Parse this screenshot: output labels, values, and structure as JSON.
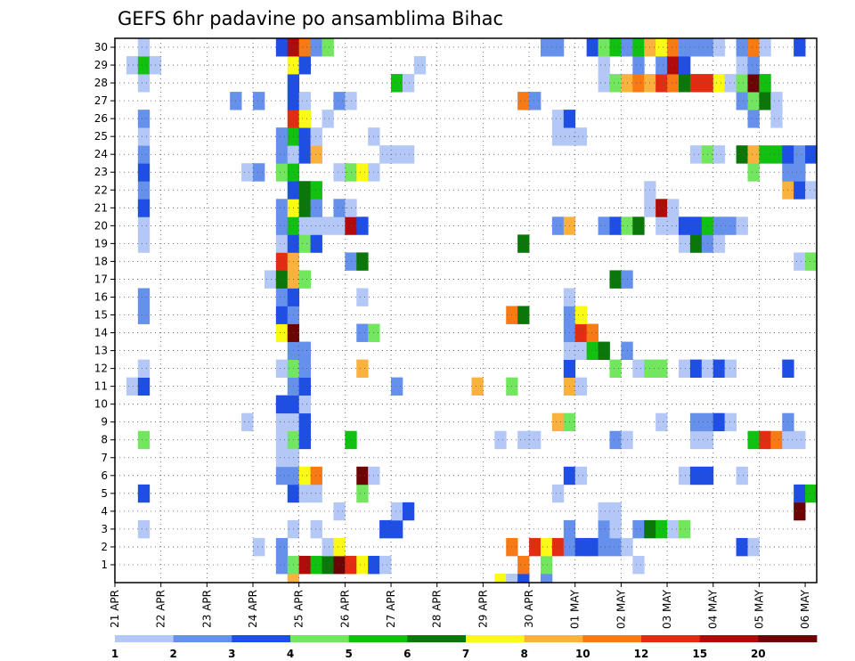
{
  "chart_data": {
    "type": "heatmap",
    "title": "GEFS 6hr padavine po ansamblima Bihac",
    "xlabel": "",
    "ylabel": "",
    "x_ticks": [
      "21 APR",
      "22 APR",
      "23 APR",
      "24 APR",
      "25 APR",
      "26 APR",
      "27 APR",
      "28 APR",
      "29 APR",
      "30 APR",
      "01 MAY",
      "02 MAY",
      "03 MAY",
      "04 MAY",
      "05 MAY",
      "06 MAY"
    ],
    "y_ticks": [
      1,
      2,
      3,
      4,
      5,
      6,
      7,
      8,
      9,
      10,
      11,
      12,
      13,
      14,
      15,
      16,
      17,
      18,
      19,
      20,
      21,
      22,
      23,
      24,
      25,
      26,
      27,
      28,
      29,
      30
    ],
    "grid": true,
    "colorbar": {
      "labels": [
        "1",
        "2",
        "3",
        "4",
        "5",
        "6",
        "7",
        "8",
        "10",
        "12",
        "15",
        "20"
      ],
      "colors": [
        "#b4c8f7",
        "#6590ec",
        "#1e4ee3",
        "#72e65f",
        "#10c10f",
        "#0b770b",
        "#fafa14",
        "#fbb13d",
        "#f87a14",
        "#e32d12",
        "#b00b0b",
        "#6b0404"
      ]
    },
    "time_steps": 61,
    "members": 30,
    "rows": {
      "1": [
        [
          14,
          1
        ],
        [
          15,
          3
        ],
        [
          16,
          10
        ],
        [
          17,
          4
        ],
        [
          18,
          5
        ],
        [
          19,
          11
        ],
        [
          20,
          9
        ],
        [
          21,
          6
        ],
        [
          22,
          2
        ],
        [
          23,
          0
        ],
        [
          35,
          8
        ],
        [
          37,
          3
        ],
        [
          45,
          0
        ]
      ],
      "2": [
        [
          12,
          0
        ],
        [
          14,
          1
        ],
        [
          18,
          0
        ],
        [
          19,
          6
        ],
        [
          34,
          8
        ],
        [
          36,
          9
        ],
        [
          37,
          6
        ],
        [
          38,
          9
        ],
        [
          39,
          1
        ],
        [
          40,
          2
        ],
        [
          41,
          2
        ],
        [
          42,
          1
        ],
        [
          43,
          1
        ],
        [
          44,
          0
        ],
        [
          54,
          2
        ],
        [
          55,
          0
        ]
      ],
      "3": [
        [
          2,
          0
        ],
        [
          15,
          0
        ],
        [
          17,
          0
        ],
        [
          23,
          2
        ],
        [
          24,
          2
        ],
        [
          39,
          1
        ],
        [
          42,
          1
        ],
        [
          43,
          0
        ],
        [
          45,
          1
        ],
        [
          46,
          5
        ],
        [
          47,
          4
        ],
        [
          48,
          0
        ],
        [
          49,
          3
        ]
      ],
      "4": [
        [
          19,
          0
        ],
        [
          24,
          0
        ],
        [
          25,
          2
        ],
        [
          42,
          0
        ],
        [
          43,
          0
        ],
        [
          59,
          11
        ]
      ],
      "5": [
        [
          2,
          2
        ],
        [
          15,
          2
        ],
        [
          16,
          0
        ],
        [
          17,
          0
        ],
        [
          21,
          3
        ],
        [
          38,
          0
        ],
        [
          59,
          2
        ],
        [
          60,
          4
        ]
      ],
      "6": [
        [
          14,
          1
        ],
        [
          15,
          1
        ],
        [
          16,
          6
        ],
        [
          17,
          8
        ],
        [
          21,
          11
        ],
        [
          22,
          0
        ],
        [
          39,
          2
        ],
        [
          40,
          0
        ],
        [
          49,
          0
        ],
        [
          50,
          2
        ],
        [
          51,
          2
        ],
        [
          54,
          0
        ]
      ],
      "7": [
        [
          14,
          0
        ],
        [
          15,
          0
        ]
      ],
      "8": [
        [
          2,
          3
        ],
        [
          14,
          0
        ],
        [
          15,
          3
        ],
        [
          16,
          2
        ],
        [
          20,
          4
        ],
        [
          33,
          0
        ],
        [
          35,
          0
        ],
        [
          36,
          0
        ],
        [
          43,
          1
        ],
        [
          44,
          0
        ],
        [
          50,
          0
        ],
        [
          51,
          0
        ],
        [
          55,
          4
        ],
        [
          56,
          9
        ],
        [
          57,
          8
        ],
        [
          58,
          0
        ],
        [
          59,
          0
        ]
      ],
      "9": [
        [
          11,
          0
        ],
        [
          14,
          0
        ],
        [
          15,
          0
        ],
        [
          16,
          2
        ],
        [
          38,
          7
        ],
        [
          39,
          3
        ],
        [
          47,
          0
        ],
        [
          50,
          1
        ],
        [
          51,
          1
        ],
        [
          52,
          2
        ],
        [
          53,
          0
        ],
        [
          58,
          1
        ]
      ],
      "10": [
        [
          14,
          2
        ],
        [
          15,
          2
        ],
        [
          16,
          0
        ]
      ],
      "11": [
        [
          1,
          0
        ],
        [
          2,
          2
        ],
        [
          15,
          1
        ],
        [
          16,
          2
        ],
        [
          24,
          1
        ],
        [
          31,
          7
        ],
        [
          34,
          3
        ],
        [
          39,
          7
        ],
        [
          40,
          0
        ]
      ],
      "12": [
        [
          2,
          0
        ],
        [
          14,
          0
        ],
        [
          15,
          3
        ],
        [
          16,
          1
        ],
        [
          21,
          7
        ],
        [
          39,
          2
        ],
        [
          43,
          3
        ],
        [
          45,
          0
        ],
        [
          46,
          3
        ],
        [
          47,
          3
        ],
        [
          49,
          0
        ],
        [
          50,
          2
        ],
        [
          51,
          0
        ],
        [
          52,
          2
        ],
        [
          53,
          0
        ],
        [
          58,
          2
        ]
      ],
      "13": [
        [
          15,
          1
        ],
        [
          16,
          1
        ],
        [
          39,
          0
        ],
        [
          40,
          0
        ],
        [
          41,
          4
        ],
        [
          42,
          5
        ],
        [
          44,
          1
        ]
      ],
      "14": [
        [
          14,
          6
        ],
        [
          15,
          11
        ],
        [
          21,
          1
        ],
        [
          22,
          3
        ],
        [
          39,
          1
        ],
        [
          40,
          9
        ],
        [
          41,
          8
        ]
      ],
      "15": [
        [
          2,
          1
        ],
        [
          14,
          2
        ],
        [
          15,
          1
        ],
        [
          34,
          8
        ],
        [
          35,
          5
        ],
        [
          39,
          1
        ],
        [
          40,
          6
        ]
      ],
      "16": [
        [
          2,
          1
        ],
        [
          14,
          1
        ],
        [
          15,
          2
        ],
        [
          21,
          0
        ],
        [
          39,
          0
        ]
      ],
      "17": [
        [
          13,
          0
        ],
        [
          14,
          5
        ],
        [
          15,
          7
        ],
        [
          16,
          3
        ],
        [
          43,
          5
        ],
        [
          44,
          1
        ]
      ],
      "18": [
        [
          14,
          9
        ],
        [
          15,
          7
        ],
        [
          20,
          1
        ],
        [
          21,
          5
        ],
        [
          59,
          0
        ],
        [
          60,
          3
        ]
      ],
      "19": [
        [
          2,
          0
        ],
        [
          14,
          0
        ],
        [
          15,
          2
        ],
        [
          16,
          3
        ],
        [
          17,
          2
        ],
        [
          35,
          5
        ],
        [
          49,
          0
        ],
        [
          50,
          5
        ],
        [
          51,
          1
        ],
        [
          52,
          0
        ]
      ],
      "20": [
        [
          2,
          0
        ],
        [
          14,
          1
        ],
        [
          15,
          4
        ],
        [
          16,
          0
        ],
        [
          17,
          0
        ],
        [
          18,
          0
        ],
        [
          19,
          0
        ],
        [
          20,
          10
        ],
        [
          21,
          2
        ],
        [
          38,
          1
        ],
        [
          39,
          7
        ],
        [
          42,
          1
        ],
        [
          43,
          2
        ],
        [
          44,
          3
        ],
        [
          45,
          5
        ],
        [
          47,
          0
        ],
        [
          48,
          0
        ],
        [
          49,
          2
        ],
        [
          50,
          2
        ],
        [
          51,
          4
        ],
        [
          52,
          1
        ],
        [
          53,
          1
        ],
        [
          54,
          0
        ]
      ],
      "21": [
        [
          2,
          2
        ],
        [
          14,
          1
        ],
        [
          15,
          6
        ],
        [
          16,
          5
        ],
        [
          17,
          1
        ],
        [
          19,
          1
        ],
        [
          20,
          0
        ],
        [
          46,
          0
        ],
        [
          47,
          10
        ],
        [
          48,
          0
        ]
      ],
      "22": [
        [
          2,
          1
        ],
        [
          15,
          2
        ],
        [
          16,
          5
        ],
        [
          17,
          4
        ],
        [
          46,
          0
        ],
        [
          58,
          7
        ],
        [
          59,
          2
        ],
        [
          60,
          0
        ]
      ],
      "23": [
        [
          2,
          2
        ],
        [
          11,
          0
        ],
        [
          12,
          1
        ],
        [
          14,
          3
        ],
        [
          15,
          4
        ],
        [
          19,
          0
        ],
        [
          20,
          3
        ],
        [
          21,
          6
        ],
        [
          22,
          0
        ],
        [
          55,
          3
        ],
        [
          58,
          1
        ],
        [
          59,
          1
        ]
      ],
      "24": [
        [
          2,
          1
        ],
        [
          14,
          1
        ],
        [
          15,
          0
        ],
        [
          16,
          2
        ],
        [
          17,
          7
        ],
        [
          23,
          0
        ],
        [
          24,
          0
        ],
        [
          25,
          0
        ],
        [
          50,
          0
        ],
        [
          51,
          3
        ],
        [
          52,
          0
        ],
        [
          54,
          5
        ],
        [
          55,
          7
        ],
        [
          56,
          4
        ],
        [
          57,
          4
        ],
        [
          58,
          2
        ],
        [
          59,
          1
        ],
        [
          60,
          2
        ]
      ],
      "25": [
        [
          2,
          0
        ],
        [
          14,
          1
        ],
        [
          15,
          4
        ],
        [
          16,
          2
        ],
        [
          17,
          0
        ],
        [
          22,
          0
        ],
        [
          38,
          0
        ],
        [
          39,
          0
        ],
        [
          40,
          0
        ]
      ],
      "26": [
        [
          2,
          1
        ],
        [
          15,
          9
        ],
        [
          16,
          6
        ],
        [
          18,
          0
        ],
        [
          38,
          0
        ],
        [
          39,
          2
        ],
        [
          55,
          1
        ],
        [
          57,
          0
        ]
      ],
      "27": [
        [
          10,
          1
        ],
        [
          12,
          1
        ],
        [
          15,
          2
        ],
        [
          16,
          0
        ],
        [
          19,
          1
        ],
        [
          20,
          0
        ],
        [
          35,
          8
        ],
        [
          36,
          1
        ],
        [
          54,
          1
        ],
        [
          55,
          3
        ],
        [
          56,
          5
        ],
        [
          57,
          0
        ]
      ],
      "28": [
        [
          2,
          0
        ],
        [
          15,
          2
        ],
        [
          24,
          4
        ],
        [
          25,
          0
        ],
        [
          42,
          0
        ],
        [
          43,
          3
        ],
        [
          44,
          7
        ],
        [
          45,
          8
        ],
        [
          46,
          7
        ],
        [
          47,
          9
        ],
        [
          48,
          8
        ],
        [
          49,
          5
        ],
        [
          50,
          9
        ],
        [
          51,
          9
        ],
        [
          52,
          6
        ],
        [
          53,
          0
        ],
        [
          54,
          3
        ],
        [
          55,
          11
        ],
        [
          56,
          4
        ]
      ],
      "29": [
        [
          1,
          0
        ],
        [
          2,
          4
        ],
        [
          3,
          0
        ],
        [
          15,
          6
        ],
        [
          16,
          2
        ],
        [
          26,
          0
        ],
        [
          42,
          0
        ],
        [
          45,
          1
        ],
        [
          47,
          1
        ],
        [
          48,
          10
        ],
        [
          49,
          2
        ],
        [
          54,
          0
        ],
        [
          55,
          1
        ]
      ],
      "30": [
        [
          2,
          0
        ],
        [
          14,
          2
        ],
        [
          15,
          10
        ],
        [
          16,
          8
        ],
        [
          17,
          1
        ],
        [
          18,
          3
        ],
        [
          37,
          1
        ],
        [
          38,
          1
        ],
        [
          41,
          2
        ],
        [
          42,
          3
        ],
        [
          43,
          4
        ],
        [
          44,
          1
        ],
        [
          45,
          4
        ],
        [
          46,
          7
        ],
        [
          47,
          6
        ],
        [
          48,
          8
        ],
        [
          49,
          1
        ],
        [
          50,
          1
        ],
        [
          51,
          1
        ],
        [
          52,
          0
        ],
        [
          54,
          1
        ],
        [
          55,
          8
        ],
        [
          56,
          0
        ],
        [
          59,
          2
        ]
      ],
      "0": [
        [
          15,
          7
        ],
        [
          33,
          6
        ],
        [
          34,
          0
        ],
        [
          35,
          2
        ],
        [
          37,
          1
        ]
      ]
    }
  }
}
